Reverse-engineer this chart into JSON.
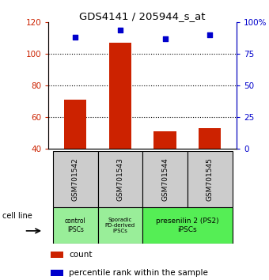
{
  "title": "GDS4141 / 205944_s_at",
  "samples": [
    "GSM701542",
    "GSM701543",
    "GSM701544",
    "GSM701545"
  ],
  "bar_values": [
    71,
    107,
    51,
    53
  ],
  "bar_bottom": 40,
  "percentile_values": [
    88,
    94,
    87,
    90
  ],
  "left_ylim": [
    40,
    120
  ],
  "right_ylim": [
    0,
    100
  ],
  "left_yticks": [
    40,
    60,
    80,
    100,
    120
  ],
  "right_yticks": [
    0,
    25,
    50,
    75,
    100
  ],
  "right_yticklabels": [
    "0",
    "25",
    "50",
    "75",
    "100%"
  ],
  "bar_color": "#cc2200",
  "dot_color": "#0000cc",
  "bg_sample": "#cccccc",
  "group1_color": "#99ee99",
  "group2_color": "#99ee99",
  "group3_color": "#55ee55",
  "cell_line_label": "cell line",
  "legend_count_label": "count",
  "legend_pct_label": "percentile rank within the sample"
}
